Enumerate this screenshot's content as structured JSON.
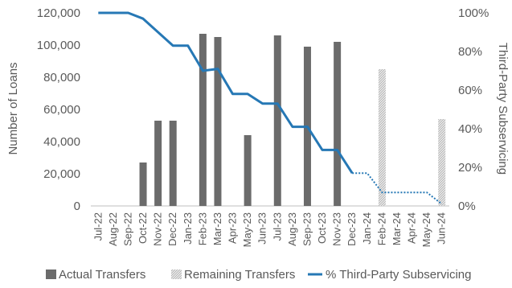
{
  "chart_data": {
    "type": "bar",
    "categories": [
      "Jul-22",
      "Aug-22",
      "Sep-22",
      "Oct-22",
      "Nov-22",
      "Dec-22",
      "Jan-23",
      "Feb-23",
      "Mar-23",
      "Apr-23",
      "May-23",
      "Jun-23",
      "Jul-23",
      "Aug-23",
      "Sep-23",
      "Oct-23",
      "Nov-23",
      "Dec-23",
      "Jan-24",
      "Feb-24",
      "Mar-24",
      "Apr-24",
      "May-24",
      "Jun-24"
    ],
    "ylabel": "Number of Loans",
    "y2label": "Third-Party Subservicing",
    "ylim": [
      0,
      120000
    ],
    "y2lim": [
      0,
      1
    ],
    "yticks": [
      "0",
      "20,000",
      "40,000",
      "60,000",
      "80,000",
      "100,000",
      "120,000"
    ],
    "y2ticks": [
      "0%",
      "20%",
      "40%",
      "60%",
      "80%",
      "100%"
    ],
    "series": [
      {
        "name": "Actual Transfers",
        "type": "bar",
        "color": "#6b6b6b",
        "values": [
          0,
          0,
          0,
          27000,
          53000,
          53000,
          0,
          107000,
          105000,
          0,
          44000,
          0,
          106000,
          0,
          99000,
          0,
          102000,
          0,
          0,
          0,
          0,
          0,
          0,
          0
        ]
      },
      {
        "name": "Remaining Transfers",
        "type": "bar",
        "color": "#cfcfcf",
        "values": [
          0,
          0,
          0,
          0,
          0,
          0,
          0,
          0,
          0,
          0,
          0,
          0,
          0,
          0,
          0,
          0,
          0,
          0,
          0,
          85000,
          0,
          0,
          0,
          54000
        ]
      },
      {
        "name": "% Third-Party Subservicing",
        "type": "line",
        "color": "#2678b5",
        "solid_points": [
          [
            0,
            1.0
          ],
          [
            1,
            1.0
          ],
          [
            2,
            1.0
          ],
          [
            3,
            0.97
          ],
          [
            4,
            0.9
          ],
          [
            5,
            0.83
          ],
          [
            6,
            0.83
          ],
          [
            7,
            0.7
          ],
          [
            8,
            0.71
          ],
          [
            9,
            0.58
          ],
          [
            10,
            0.58
          ],
          [
            11,
            0.53
          ],
          [
            12,
            0.53
          ],
          [
            13,
            0.41
          ],
          [
            14,
            0.41
          ],
          [
            15,
            0.29
          ],
          [
            16,
            0.29
          ],
          [
            17,
            0.17
          ]
        ],
        "dotted_points": [
          [
            17,
            0.17
          ],
          [
            18,
            0.17
          ],
          [
            19,
            0.07
          ],
          [
            20,
            0.07
          ],
          [
            21,
            0.07
          ],
          [
            22,
            0.07
          ],
          [
            23,
            0.01
          ]
        ]
      }
    ],
    "legend": {
      "placement": "bottom",
      "items": [
        "Actual Transfers",
        "Remaining Transfers",
        "% Third-Party Subservicing"
      ]
    },
    "grid": false
  }
}
